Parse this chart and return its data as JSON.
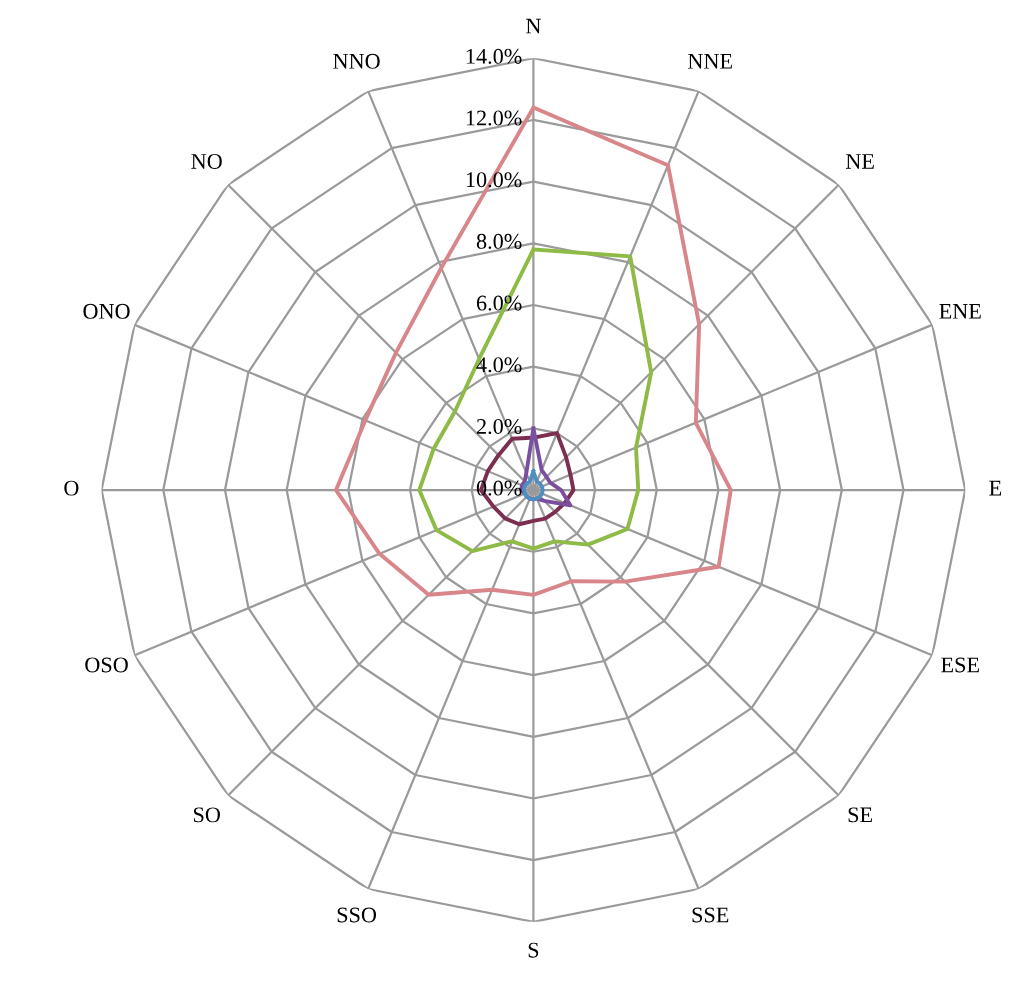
{
  "chart_data": {
    "type": "radar",
    "categories": [
      "N",
      "NNE",
      "NE",
      "ENE",
      "E",
      "ESE",
      "SE",
      "SSE",
      "S",
      "SSO",
      "SO",
      "OSO",
      "O",
      "ONO",
      "NO",
      "NNO"
    ],
    "ylim": [
      0,
      14
    ],
    "yticks": [
      {
        "value": 0,
        "label": "0.0%"
      },
      {
        "value": 2,
        "label": "2.0%"
      },
      {
        "value": 4,
        "label": "4.0%"
      },
      {
        "value": 6,
        "label": "6.0%"
      },
      {
        "value": 8,
        "label": "8.0%"
      },
      {
        "value": 10,
        "label": "10.0%"
      },
      {
        "value": 12,
        "label": "12.0%"
      },
      {
        "value": 14,
        "label": "14.0%"
      }
    ],
    "grid": true,
    "marker": "none",
    "line_style": "solid",
    "series": [
      {
        "color": "#d9868a",
        "values": [
          12.4,
          11.4,
          7.6,
          5.7,
          6.4,
          6.5,
          4.2,
          3.2,
          3.4,
          3.5,
          4.8,
          5.4,
          6.4,
          5.9,
          6.3,
          7.8
        ]
      },
      {
        "color": "#8dbb45",
        "values": [
          7.8,
          8.2,
          5.4,
          3.6,
          3.4,
          3.3,
          2.5,
          1.8,
          1.9,
          1.8,
          2.8,
          3.4,
          3.7,
          3.5,
          3.6,
          4.6
        ]
      },
      {
        "color": "#7b2e4f",
        "values": [
          1.7,
          2.0,
          1.5,
          1.3,
          1.3,
          1.1,
          1.0,
          1.0,
          1.0,
          1.2,
          1.3,
          1.4,
          1.7,
          1.6,
          1.6,
          1.8
        ]
      },
      {
        "color": "#7b4fa0",
        "values": [
          2.0,
          0.7,
          0.6,
          0.6,
          0.9,
          1.3,
          0.5,
          0.3,
          0.3,
          0.3,
          0.3,
          0.3,
          0.4,
          0.4,
          0.4,
          0.6
        ]
      },
      {
        "color": "#4f8fc0",
        "values": [
          0.6,
          0.3,
          0.3,
          0.3,
          0.3,
          0.3,
          0.3,
          0.3,
          0.3,
          0.3,
          0.3,
          0.3,
          0.3,
          0.3,
          0.3,
          0.3
        ]
      }
    ]
  }
}
